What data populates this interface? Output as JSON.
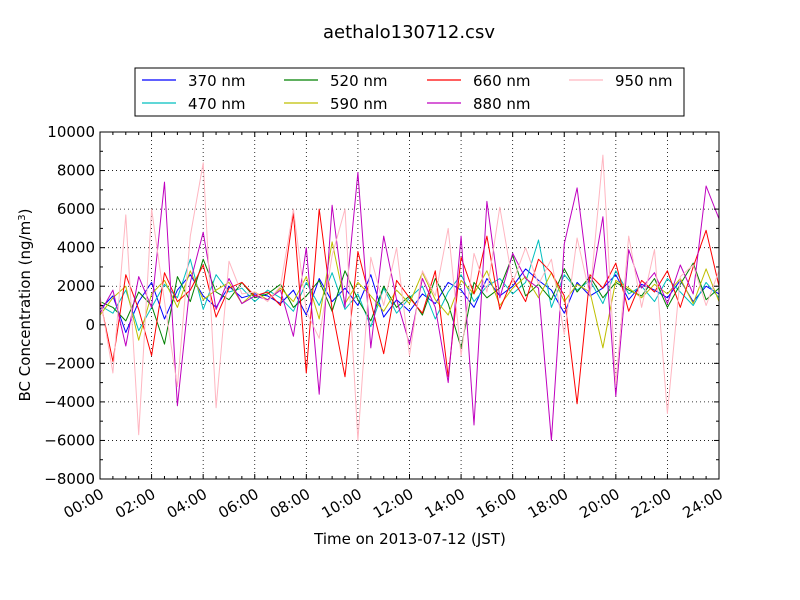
{
  "chart_data": {
    "type": "line",
    "title": "aethalo130712.csv",
    "xlabel": "Time on 2013-07-12 (JST)",
    "ylabel": "BC Concentration (ng/m",
    "ylabel_sup": "3",
    "ylabel_end": ")",
    "xlim": [
      "2013-07-12 00:00",
      "2013-07-13 00:00"
    ],
    "ylim": [
      -8000,
      10000
    ],
    "grid": true,
    "legend_position": "top-center",
    "x_ticks": [
      "00:00",
      "02:00",
      "04:00",
      "06:00",
      "08:00",
      "10:00",
      "12:00",
      "14:00",
      "16:00",
      "18:00",
      "20:00",
      "22:00",
      "24:00"
    ],
    "y_ticks": [
      "-8000",
      "-6000",
      "-4000",
      "-2000",
      "0",
      "2000",
      "4000",
      "6000",
      "8000",
      "10000"
    ],
    "x_hours": [
      0,
      0.5,
      1,
      1.5,
      2,
      2.5,
      3,
      3.5,
      4,
      4.5,
      5,
      5.5,
      6,
      6.5,
      7,
      7.5,
      8,
      8.5,
      9,
      9.5,
      10,
      10.5,
      11,
      11.5,
      12,
      12.5,
      13,
      13.5,
      14,
      14.5,
      15,
      15.5,
      16,
      16.5,
      17,
      17.5,
      18,
      18.5,
      19,
      19.5,
      20,
      20.5,
      21,
      21.5,
      22,
      22.5,
      23,
      23.5,
      24
    ],
    "series": [
      {
        "name": "370 nm",
        "color": "#0000ff",
        "values": [
          800,
          1500,
          -400,
          1200,
          2200,
          300,
          1800,
          2600,
          1500,
          900,
          2000,
          1400,
          1600,
          1500,
          1100,
          1800,
          500,
          2400,
          1200,
          1900,
          1000,
          2600,
          400,
          1300,
          700,
          1600,
          1100,
          2200,
          1800,
          900,
          2400,
          1500,
          2000,
          2900,
          2300,
          1800,
          600,
          2200,
          1500,
          1900,
          2600,
          1300,
          2100,
          1800,
          1400,
          2300,
          1200,
          2000,
          1600
        ]
      },
      {
        "name": "470 nm",
        "color": "#00bfbf",
        "values": [
          1000,
          600,
          1800,
          -300,
          900,
          2100,
          1400,
          3400,
          800,
          2600,
          1700,
          1900,
          1200,
          1800,
          1400,
          700,
          2200,
          1000,
          2700,
          800,
          1600,
          -100,
          1900,
          600,
          1400,
          2000,
          300,
          1700,
          2600,
          1200,
          2000,
          2400,
          1600,
          2200,
          4400,
          900,
          2600,
          1800,
          2300,
          1100,
          2800,
          1600,
          2000,
          1200,
          2400,
          1700,
          1000,
          2200,
          1400
        ]
      },
      {
        "name": "520 nm",
        "color": "#008000",
        "values": [
          1200,
          900,
          200,
          1700,
          1000,
          -1000,
          2500,
          1200,
          3400,
          1700,
          1300,
          2200,
          1400,
          1600,
          2100,
          900,
          1500,
          2300,
          700,
          2800,
          1300,
          200,
          2000,
          900,
          1500,
          500,
          2400,
          1100,
          -1200,
          2200,
          1400,
          1900,
          3600,
          1500,
          2100,
          1300,
          2900,
          1700,
          2500,
          1400,
          2200,
          1800,
          1500,
          2400,
          900,
          2100,
          3200,
          1300,
          1900
        ]
      },
      {
        "name": "590 nm",
        "color": "#bfbf00",
        "values": [
          500,
          1400,
          2000,
          -800,
          1600,
          2300,
          900,
          2800,
          1300,
          1800,
          2200,
          1100,
          1700,
          1300,
          1900,
          1200,
          2500,
          300,
          4300,
          1100,
          2200,
          1500,
          700,
          1800,
          1100,
          2700,
          1300,
          500,
          2300,
          1600,
          2800,
          1000,
          1900,
          2500,
          1400,
          2700,
          1200,
          2100,
          1700,
          -1200,
          2300,
          1900,
          1400,
          2100,
          1600,
          2400,
          1100,
          2900,
          1200
        ]
      },
      {
        "name": "660 nm",
        "color": "#ff0000",
        "values": [
          1300,
          -1900,
          2600,
          800,
          -1600,
          2700,
          1200,
          1800,
          3100,
          400,
          1900,
          2200,
          1500,
          1700,
          1000,
          5800,
          -2500,
          6000,
          800,
          -2700,
          3800,
          1200,
          -1500,
          2300,
          1400,
          600,
          2800,
          -2700,
          3500,
          1600,
          4600,
          800,
          2400,
          1200,
          3400,
          2700,
          1500,
          -4100,
          2600,
          1900,
          3200,
          700,
          2300,
          1700,
          2800,
          900,
          3000,
          4900,
          2000
        ]
      },
      {
        "name": "880 nm",
        "color": "#bf00bf",
        "values": [
          600,
          1800,
          -1100,
          2500,
          900,
          7400,
          -4200,
          2200,
          4800,
          800,
          2400,
          1100,
          1500,
          1300,
          1800,
          -600,
          4000,
          -3600,
          6200,
          900,
          7900,
          -1200,
          4600,
          1300,
          -1000,
          2400,
          900,
          -3000,
          4600,
          -5200,
          6400,
          1400,
          3700,
          2400,
          1900,
          -6000,
          4200,
          7100,
          1700,
          5600,
          -3700,
          3900,
          1900,
          2700,
          1100,
          3100,
          1600,
          7200,
          5500
        ]
      },
      {
        "name": "950 nm",
        "color": "#ffb6c1",
        "values": [
          1500,
          -2500,
          5700,
          -5700,
          6000,
          1200,
          -3200,
          4600,
          8400,
          -4300,
          3300,
          1600,
          1700,
          1200,
          2000,
          6000,
          700,
          -700,
          3600,
          6000,
          -6000,
          3500,
          1000,
          4000,
          -1600,
          2800,
          1500,
          5000,
          -1600,
          3700,
          1700,
          6100,
          2200,
          4000,
          2100,
          3400,
          -500,
          4500,
          1500,
          8800,
          -3100,
          4600,
          900,
          3900,
          -4600,
          2500,
          3100,
          1000,
          2800
        ]
      }
    ]
  }
}
